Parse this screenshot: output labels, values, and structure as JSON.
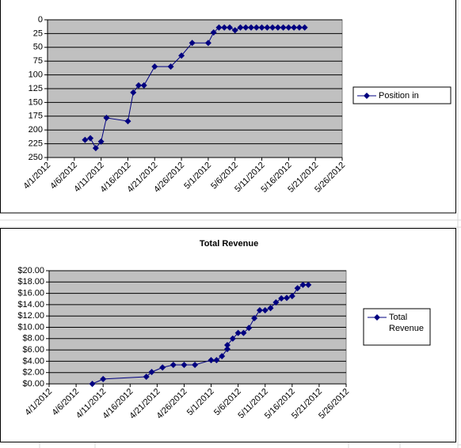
{
  "chart_data": [
    {
      "type": "line",
      "x": [
        "4/8/2012",
        "4/9/2012",
        "4/10/2012",
        "4/11/2012",
        "4/12/2012",
        "4/16/2012",
        "4/17/2012",
        "4/18/2012",
        "4/19/2012",
        "4/21/2012",
        "4/24/2012",
        "4/26/2012",
        "4/28/2012",
        "5/1/2012",
        "5/2/2012",
        "5/3/2012",
        "5/4/2012",
        "5/5/2012",
        "5/6/2012",
        "5/7/2012",
        "5/8/2012",
        "5/9/2012",
        "5/10/2012",
        "5/11/2012",
        "5/12/2012",
        "5/13/2012",
        "5/14/2012",
        "5/15/2012",
        "5/16/2012",
        "5/17/2012",
        "5/18/2012",
        "5/19/2012"
      ],
      "series": [
        {
          "name": "Position in Google",
          "color": "#000080",
          "values": [
            218,
            215,
            233,
            221,
            178,
            184,
            132,
            119,
            119,
            85,
            85,
            65,
            42,
            42,
            23,
            14,
            14,
            14,
            19,
            14,
            14,
            14,
            14,
            14,
            14,
            14,
            14,
            14,
            14,
            14,
            14,
            14
          ]
        }
      ],
      "xlim": [
        "4/1/2012",
        "5/26/2012"
      ],
      "xticks": [
        "4/1/2012",
        "4/6/2012",
        "4/11/2012",
        "4/16/2012",
        "4/21/2012",
        "4/26/2012",
        "5/1/2012",
        "5/6/2012",
        "5/11/2012",
        "5/16/2012",
        "5/21/2012",
        "5/26/2012"
      ],
      "ylim": [
        0,
        250
      ],
      "y_reversed": true,
      "yticks": [
        0,
        25,
        50,
        75,
        100,
        125,
        150,
        175,
        200,
        225,
        250
      ],
      "grid": true,
      "legend": "right"
    },
    {
      "type": "line",
      "title": "Total Revenue",
      "x": [
        "4/9/2012",
        "4/11/2012",
        "4/19/2012",
        "4/20/2012",
        "4/22/2012",
        "4/24/2012",
        "4/26/2012",
        "4/28/2012",
        "5/1/2012",
        "5/2/2012",
        "5/3/2012",
        "5/4/2012",
        "5/4/2012",
        "5/5/2012",
        "5/6/2012",
        "5/7/2012",
        "5/8/2012",
        "5/9/2012",
        "5/10/2012",
        "5/11/2012",
        "5/12/2012",
        "5/13/2012",
        "5/14/2012",
        "5/15/2012",
        "5/16/2012",
        "5/17/2012",
        "5/18/2012",
        "5/19/2012"
      ],
      "series": [
        {
          "name": "Total Revenue",
          "color": "#000080",
          "values": [
            0,
            0.85,
            1.26,
            2.1,
            2.9,
            3.36,
            3.36,
            3.36,
            4.2,
            4.2,
            4.9,
            6.15,
            6.85,
            8.0,
            9.0,
            9.0,
            9.9,
            11.6,
            13.0,
            13.0,
            13.4,
            14.4,
            15.1,
            15.2,
            15.5,
            16.9,
            17.5,
            17.5
          ]
        }
      ],
      "xlim": [
        "4/1/2012",
        "5/26/2012"
      ],
      "xticks": [
        "4/1/2012",
        "4/6/2012",
        "4/11/2012",
        "4/16/2012",
        "4/21/2012",
        "4/26/2012",
        "5/1/2012",
        "5/6/2012",
        "5/11/2012",
        "5/16/2012",
        "5/21/2012",
        "5/26/2012"
      ],
      "ylim": [
        0,
        20
      ],
      "yticks": [
        {
          "value": 0,
          "label": "$0.00"
        },
        {
          "value": 2,
          "label": "$2.00"
        },
        {
          "value": 4,
          "label": "$4.00"
        },
        {
          "value": 6,
          "label": "$6.00"
        },
        {
          "value": 8,
          "label": "$8.00"
        },
        {
          "value": 10,
          "label": "$10.00"
        },
        {
          "value": 12,
          "label": "$12.00"
        },
        {
          "value": 14,
          "label": "$14.00"
        },
        {
          "value": 16,
          "label": "$16.00"
        },
        {
          "value": 18,
          "label": "$18.00"
        },
        {
          "value": 20,
          "label": "$20.00"
        }
      ],
      "grid": true,
      "legend": "right"
    }
  ]
}
